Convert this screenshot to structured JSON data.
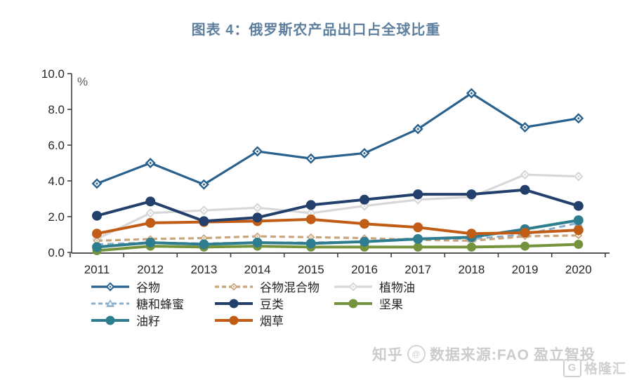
{
  "title": "图表 4：俄罗斯农产品出口占全球比重",
  "colors": {
    "title": "#5e7f9e",
    "axis": "#404040",
    "tick_label": "#262626",
    "unit_label": "#595959",
    "watermark": "#cccccc"
  },
  "chart_data": {
    "type": "line",
    "x": [
      "2011",
      "2012",
      "2013",
      "2014",
      "2015",
      "2016",
      "2017",
      "2018",
      "2019",
      "2020"
    ],
    "ylabel": "%",
    "ylim": [
      0,
      10
    ],
    "y_ticks": [
      0,
      2,
      4,
      6,
      8,
      10
    ],
    "y_tick_labels": [
      "0.0",
      "2.0",
      "4.0",
      "6.0",
      "8.0",
      "10.0"
    ],
    "grid": false,
    "legend_position": "bottom",
    "series": [
      {
        "name": "谷物",
        "color": "#29618e",
        "marker": "diamond",
        "dash": null,
        "values": [
          3.85,
          5.0,
          3.8,
          5.65,
          5.25,
          5.55,
          6.9,
          8.9,
          7.0,
          7.5
        ]
      },
      {
        "name": "谷物混合物",
        "color": "#c9a57c",
        "marker": "diamond",
        "dash": "8 5",
        "values": [
          0.65,
          0.75,
          0.8,
          0.9,
          0.85,
          0.8,
          0.7,
          0.65,
          0.9,
          0.95
        ]
      },
      {
        "name": "植物油",
        "color": "#d8d8d8",
        "marker": "diamond",
        "dash": null,
        "values": [
          0.75,
          2.2,
          2.35,
          2.5,
          2.2,
          2.6,
          2.95,
          3.1,
          4.35,
          4.25
        ]
      },
      {
        "name": "糖和蜂蜜",
        "color": "#8aafcc",
        "marker": "triangle",
        "dash": "9 6",
        "values": [
          0.45,
          0.55,
          0.5,
          0.55,
          0.55,
          0.6,
          0.8,
          0.75,
          1.0,
          1.65
        ]
      },
      {
        "name": "豆类",
        "color": "#233f6b",
        "marker": "circle",
        "dash": null,
        "values": [
          2.05,
          2.85,
          1.75,
          1.95,
          2.65,
          2.95,
          3.25,
          3.25,
          3.5,
          2.6
        ]
      },
      {
        "name": "坚果",
        "color": "#75923c",
        "marker": "circle",
        "dash": null,
        "values": [
          0.1,
          0.35,
          0.3,
          0.35,
          0.3,
          0.3,
          0.3,
          0.3,
          0.35,
          0.45
        ]
      },
      {
        "name": "油籽",
        "color": "#2e7d8e",
        "marker": "circle",
        "dash": null,
        "values": [
          0.3,
          0.55,
          0.45,
          0.55,
          0.5,
          0.6,
          0.75,
          0.85,
          1.3,
          1.8
        ]
      },
      {
        "name": "烟草",
        "color": "#c05c15",
        "marker": "circle",
        "dash": null,
        "values": [
          1.05,
          1.65,
          1.7,
          1.75,
          1.85,
          1.6,
          1.4,
          1.05,
          1.1,
          1.25
        ]
      }
    ]
  },
  "watermark": {
    "zhihu_label": "知乎",
    "avatar_glyph": "@",
    "source_label": "数据来源:FAO",
    "author_label": "盈立智投",
    "brand_label": "格隆汇",
    "brand_glyph": "G"
  }
}
